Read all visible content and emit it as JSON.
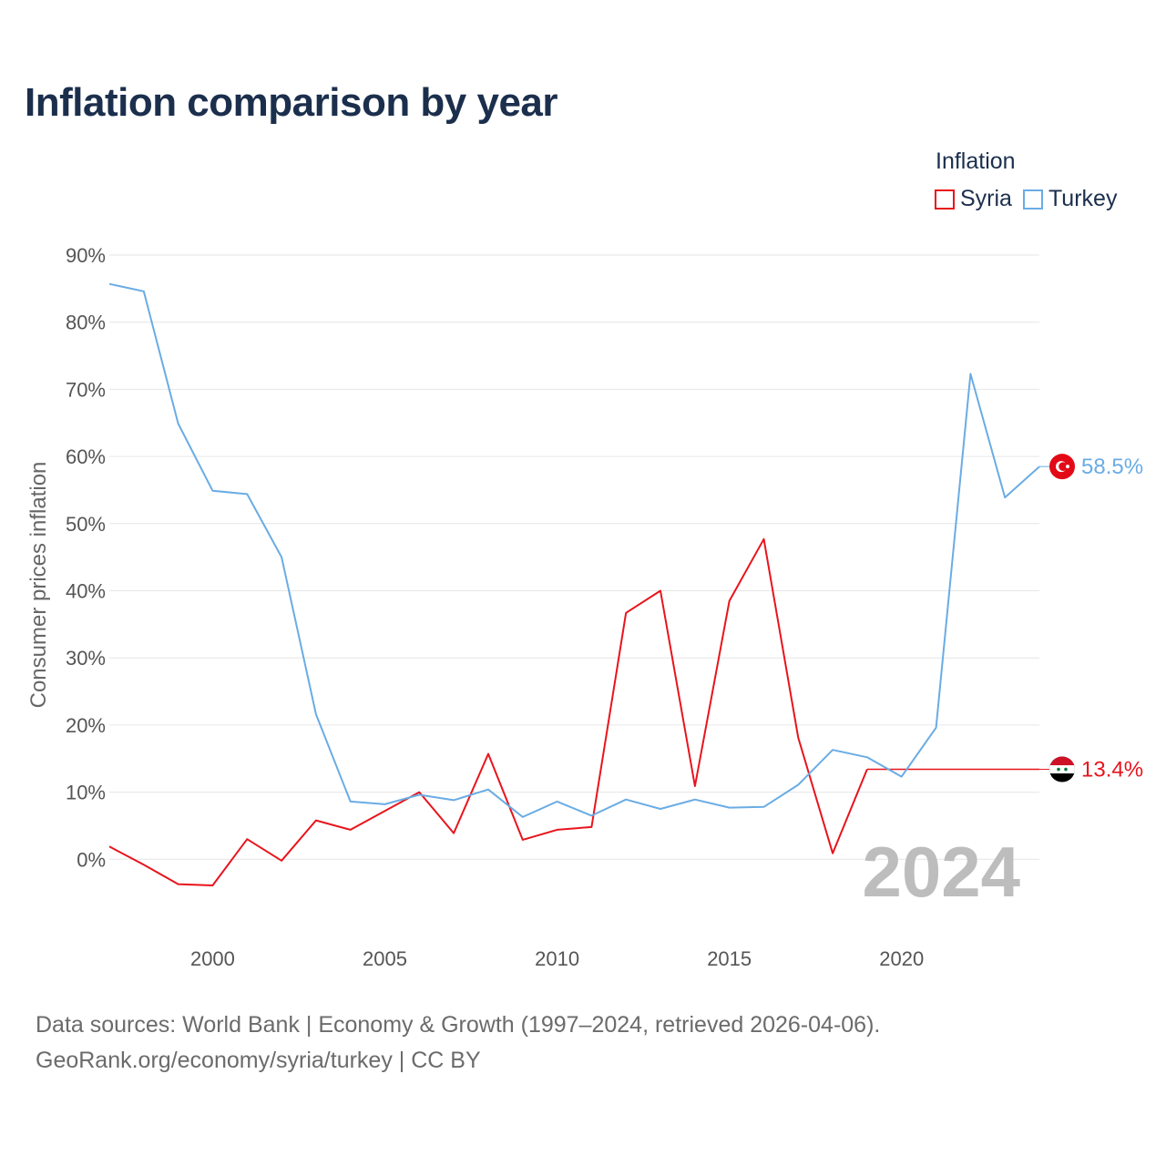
{
  "page": {
    "title": "Inflation comparison by year",
    "legend_title": "Inflation",
    "footer_line1": "Data sources: World Bank | Economy & Growth (1997–2024, retrieved 2026-04-06).",
    "footer_line2": "GeoRank.org/economy/syria/turkey | CC BY"
  },
  "chart_data": {
    "type": "line",
    "title": "Inflation comparison by year",
    "xlabel": "",
    "ylabel": "Consumer prices inflation",
    "x": [
      1997,
      1998,
      1999,
      2000,
      2001,
      2002,
      2003,
      2004,
      2005,
      2006,
      2007,
      2008,
      2009,
      2010,
      2011,
      2012,
      2013,
      2014,
      2015,
      2016,
      2017,
      2018,
      2019,
      2020,
      2021,
      2022,
      2023,
      2024
    ],
    "xlim": [
      1997,
      2024
    ],
    "ylim": [
      -10,
      90
    ],
    "xticks": [
      2000,
      2005,
      2010,
      2015,
      2020
    ],
    "xtick_labels": [
      "2000",
      "2005",
      "2010",
      "2015",
      "2020"
    ],
    "yticks": [
      0,
      10,
      20,
      30,
      40,
      50,
      60,
      70,
      80,
      90
    ],
    "ytick_labels": [
      "0%",
      "10%",
      "20%",
      "30%",
      "40%",
      "50%",
      "60%",
      "70%",
      "80%",
      "90%"
    ],
    "grid": true,
    "legend_position": "top-right",
    "current_year_label": "2024",
    "series": [
      {
        "name": "Syria",
        "color": "#e8141c",
        "end_label": "13.4%",
        "flag": "syria-flag",
        "values": [
          1.9,
          -0.8,
          -3.7,
          -3.9,
          3.0,
          -0.2,
          5.8,
          4.4,
          7.2,
          10.0,
          3.9,
          15.7,
          2.9,
          4.4,
          4.8,
          36.7,
          40.0,
          10.9,
          38.5,
          47.7,
          18.1,
          0.9,
          13.4,
          null,
          null,
          null,
          null,
          null
        ],
        "last_value": 13.4
      },
      {
        "name": "Turkey",
        "color": "#6aace4",
        "end_label": "58.5%",
        "flag": "turkey-flag",
        "values": [
          85.7,
          84.6,
          64.9,
          54.9,
          54.4,
          45.0,
          21.6,
          8.6,
          8.2,
          9.6,
          8.8,
          10.4,
          6.3,
          8.6,
          6.5,
          8.9,
          7.5,
          8.9,
          7.7,
          7.8,
          11.1,
          16.3,
          15.2,
          12.3,
          19.6,
          72.3,
          53.9,
          58.5
        ],
        "last_value": 58.5
      }
    ]
  }
}
